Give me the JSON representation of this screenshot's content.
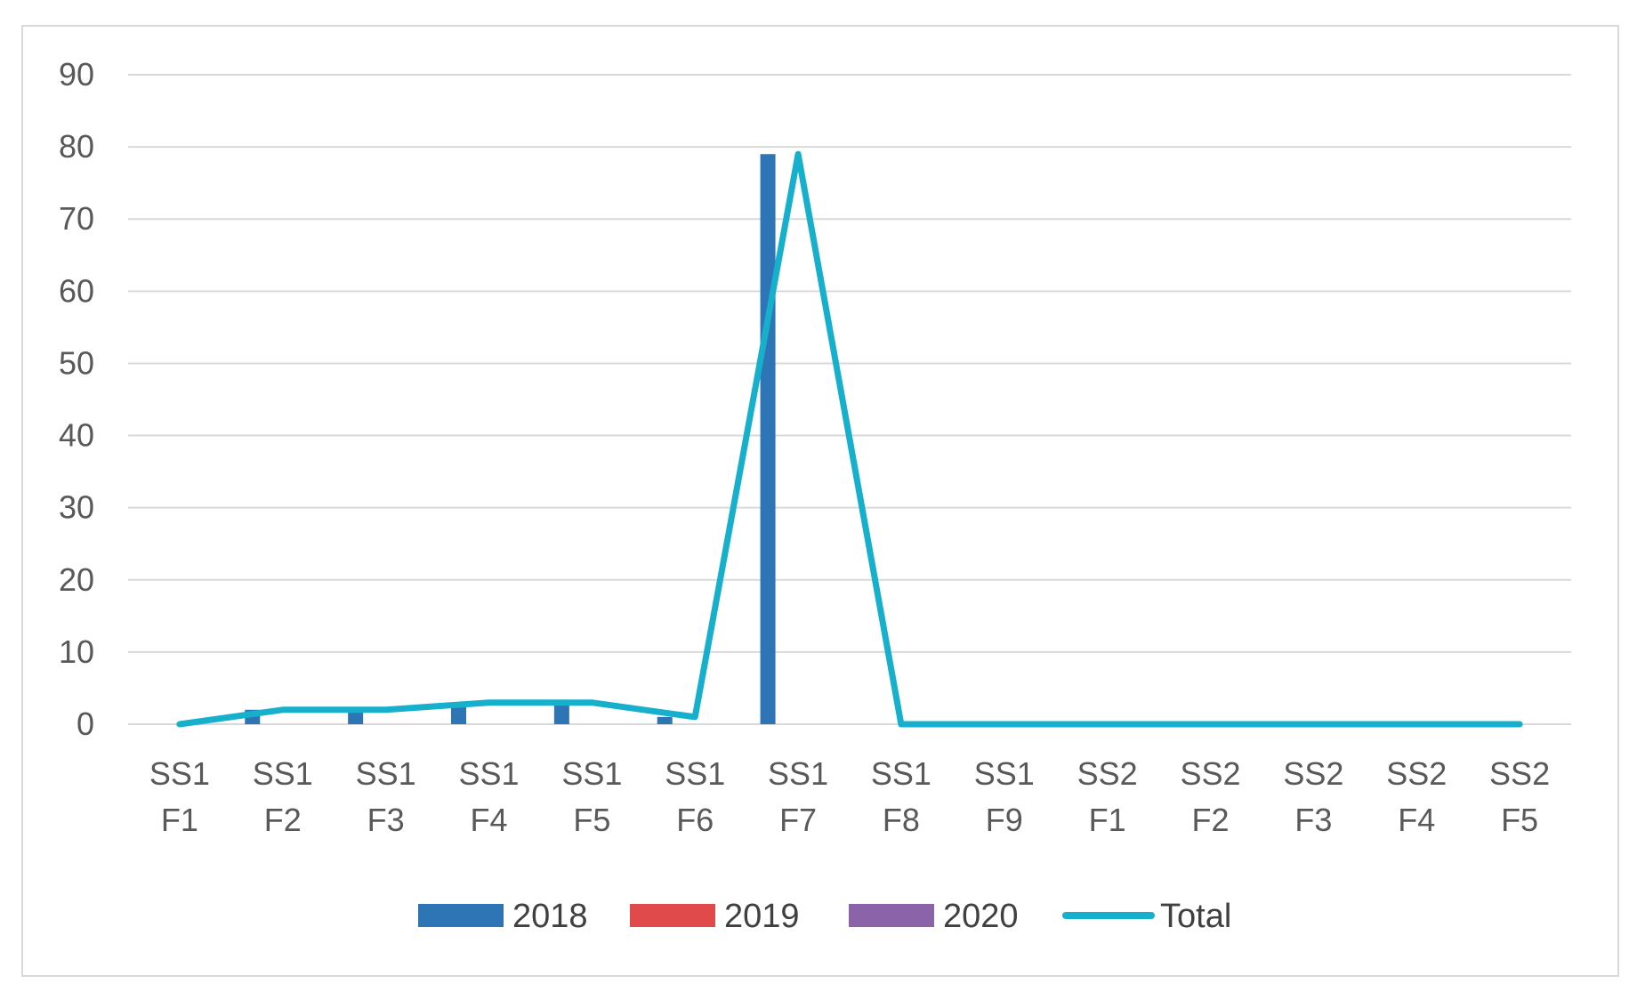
{
  "chart_data": {
    "type": "bar",
    "categories": [
      [
        "SS1",
        "F1"
      ],
      [
        "SS1",
        "F2"
      ],
      [
        "SS1",
        "F3"
      ],
      [
        "SS1",
        "F4"
      ],
      [
        "SS1",
        "F5"
      ],
      [
        "SS1",
        "F6"
      ],
      [
        "SS1",
        "F7"
      ],
      [
        "SS1",
        "F8"
      ],
      [
        "SS1",
        "F9"
      ],
      [
        "SS2",
        "F1"
      ],
      [
        "SS2",
        "F2"
      ],
      [
        "SS2",
        "F3"
      ],
      [
        "SS2",
        "F4"
      ],
      [
        "SS2",
        "F5"
      ]
    ],
    "series": [
      {
        "name": "2018",
        "kind": "bar",
        "color": "#2e75b6",
        "values": [
          0,
          2,
          2,
          3,
          3,
          1,
          79,
          0,
          0,
          0,
          0,
          0,
          0,
          0
        ]
      },
      {
        "name": "2019",
        "kind": "bar",
        "color": "#e04a4a",
        "values": [
          0,
          0,
          0,
          0,
          0,
          0,
          0,
          0,
          0,
          0,
          0,
          0,
          0,
          0
        ]
      },
      {
        "name": "2020",
        "kind": "bar",
        "color": "#8a63a8",
        "values": [
          0,
          0,
          0,
          0,
          0,
          0,
          0,
          0,
          0,
          0,
          0,
          0,
          0,
          0
        ]
      },
      {
        "name": "Total",
        "kind": "line",
        "color": "#17b0cc",
        "values": [
          0,
          2,
          2,
          3,
          3,
          1,
          79,
          0,
          0,
          0,
          0,
          0,
          0,
          0
        ]
      }
    ],
    "ylim": [
      0,
      90
    ],
    "yticks": [
      0,
      10,
      20,
      30,
      40,
      50,
      60,
      70,
      80,
      90
    ],
    "grid": true,
    "legend_position": "bottom"
  }
}
